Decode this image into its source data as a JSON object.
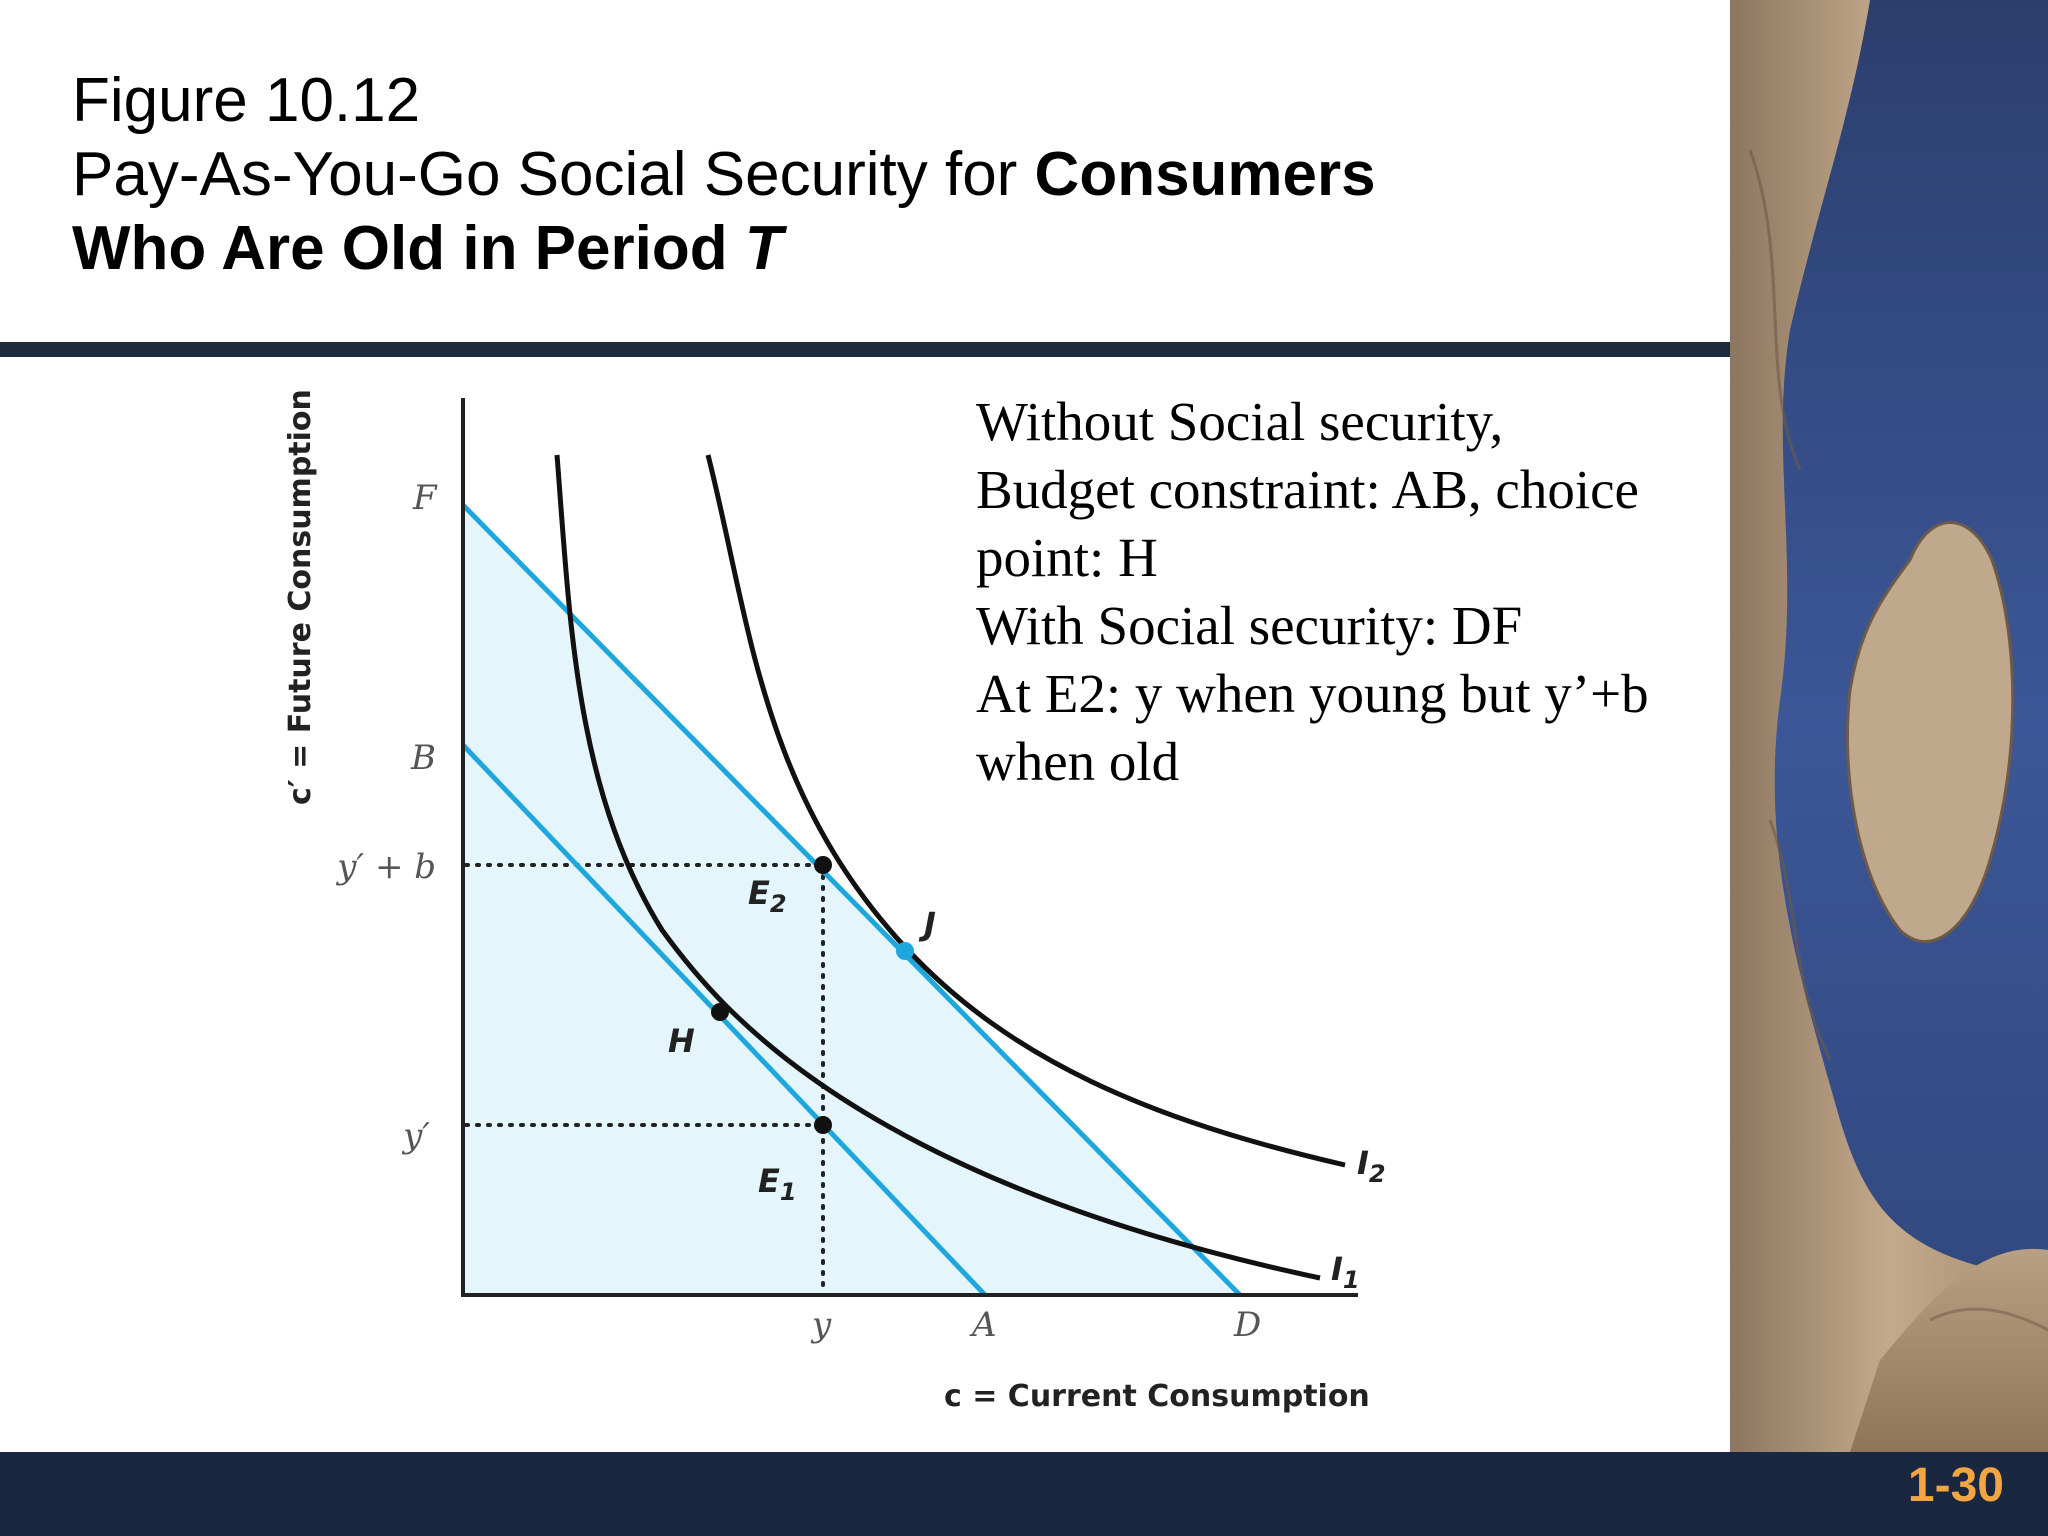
{
  "slide": {
    "title_line1": "Figure 10.12",
    "title_line2_plain": "Pay-As-You-Go Social Security for ",
    "title_line2_bold": "Consumers",
    "title_line3_bold": "Who Are Old in Period ",
    "title_line3_italic": "T",
    "slide_number": "1-30"
  },
  "note": {
    "lines": [
      "Without Social security,",
      "Budget constraint: AB, choice",
      "point: H",
      "With Social security: DF",
      "At E2: y when young but y’+b",
      "when old"
    ]
  },
  "diagram": {
    "y_axis_label": "c′ = Future Consumption",
    "x_axis_label": "c = Current Consumption",
    "y_ticks": {
      "F": "F",
      "B": "B",
      "ypb": "y′ + b",
      "yp": "y′"
    },
    "x_ticks": {
      "y": "y",
      "A": "A",
      "D": "D"
    },
    "points": {
      "E2": "E",
      "E2_sub": "2",
      "J": "J",
      "H": "H",
      "E1": "E",
      "E1_sub": "1"
    },
    "curves": {
      "I2": "I",
      "I2_sub": "2",
      "I1": "I",
      "I1_sub": "1"
    },
    "colors": {
      "budget_line": "#1ea7dd",
      "shade": "#e4f5fc",
      "curve": "#111111",
      "point_J": "#1ea7dd",
      "point": "#111111"
    }
  },
  "colors": {
    "header_rule": "#1d293d",
    "footer": "#1a2740",
    "slide_number": "#f2a541"
  }
}
